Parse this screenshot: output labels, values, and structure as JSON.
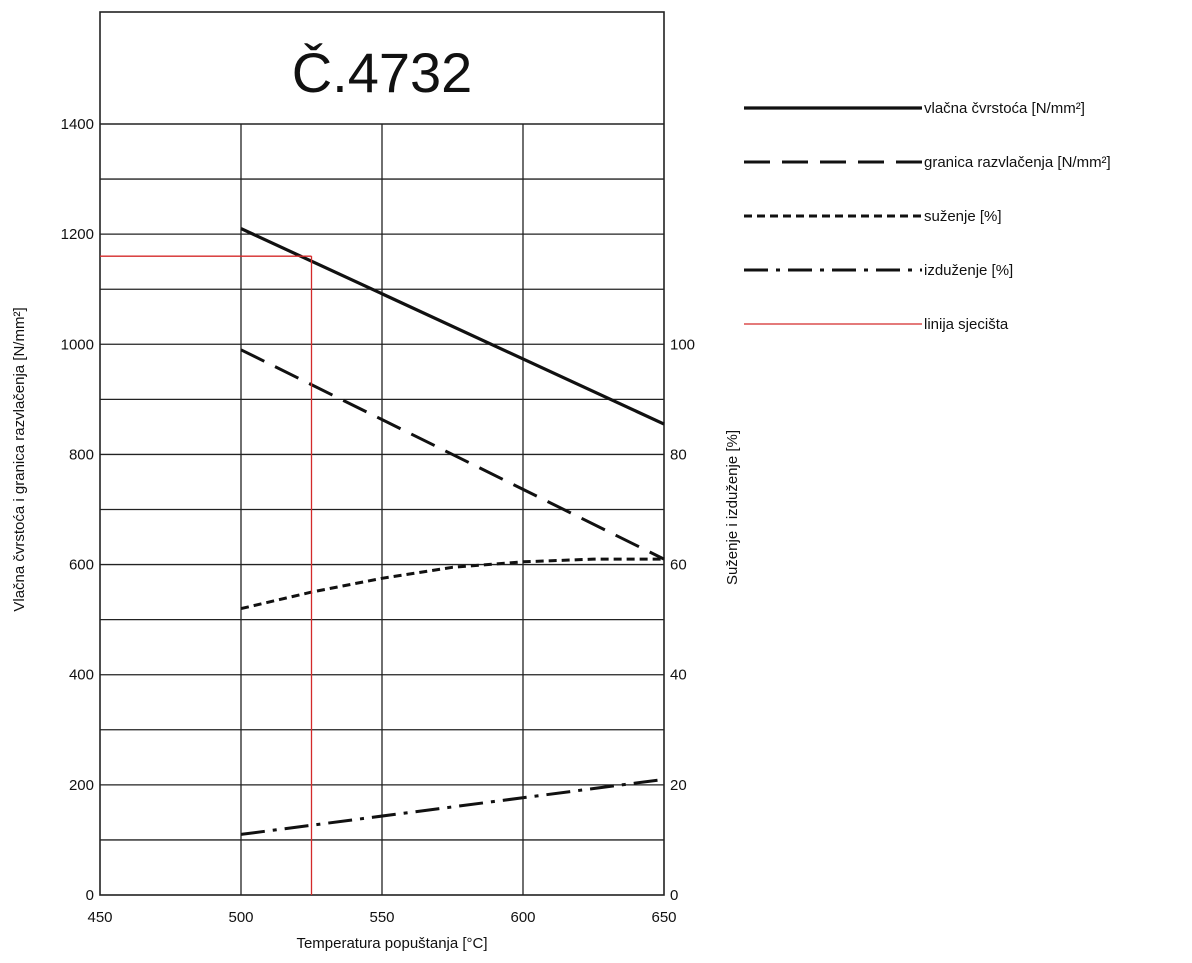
{
  "chart_data": {
    "type": "line",
    "title": "Č.4732",
    "xlabel": "Temperatura popuštanja [°C]",
    "ylabel_left": "Vlačna čvrstoća i granica razvlačenja  [N/mm²]",
    "ylabel_right": "Suženje i izduženje  [%]",
    "x_ticks": [
      "450",
      "500",
      "550",
      "600",
      "650"
    ],
    "x_tick_values": [
      450,
      500,
      550,
      600,
      650
    ],
    "y_left_ticks": [
      "0",
      "200",
      "400",
      "600",
      "800",
      "1000",
      "1200",
      "1400"
    ],
    "y_left_tick_values": [
      0,
      200,
      400,
      600,
      800,
      1000,
      1200,
      1400
    ],
    "y_right_ticks": [
      "0",
      "20",
      "40",
      "60",
      "80",
      "100"
    ],
    "y_right_tick_values": [
      0,
      20,
      40,
      60,
      80,
      100
    ],
    "xlim": [
      450,
      650
    ],
    "ylim_left": [
      0,
      1400
    ],
    "ylim_right": [
      0,
      140
    ],
    "grid": true,
    "legend_position": "right",
    "series": [
      {
        "name": "vlačna čvrstoća [N/mm²]",
        "axis": "left",
        "style": "solid",
        "x": [
          500,
          650
        ],
        "y": [
          1210,
          855
        ]
      },
      {
        "name": "granica razvlačenja [N/mm²]",
        "axis": "left",
        "style": "dashed",
        "x": [
          500,
          650
        ],
        "y": [
          990,
          610
        ]
      },
      {
        "name": "suženje [%]",
        "axis": "right",
        "style": "dotted",
        "x": [
          500,
          525,
          550,
          575,
          600,
          625,
          650
        ],
        "y": [
          52,
          55,
          57.5,
          59.5,
          60.5,
          61,
          61
        ]
      },
      {
        "name": "izduženje [%]",
        "axis": "right",
        "style": "dashdot",
        "x": [
          500,
          650
        ],
        "y": [
          11,
          21
        ]
      },
      {
        "name": "linija sjecišta",
        "axis": "left",
        "style": "red-guide",
        "x": [
          525
        ],
        "y": [
          1160
        ]
      }
    ]
  }
}
